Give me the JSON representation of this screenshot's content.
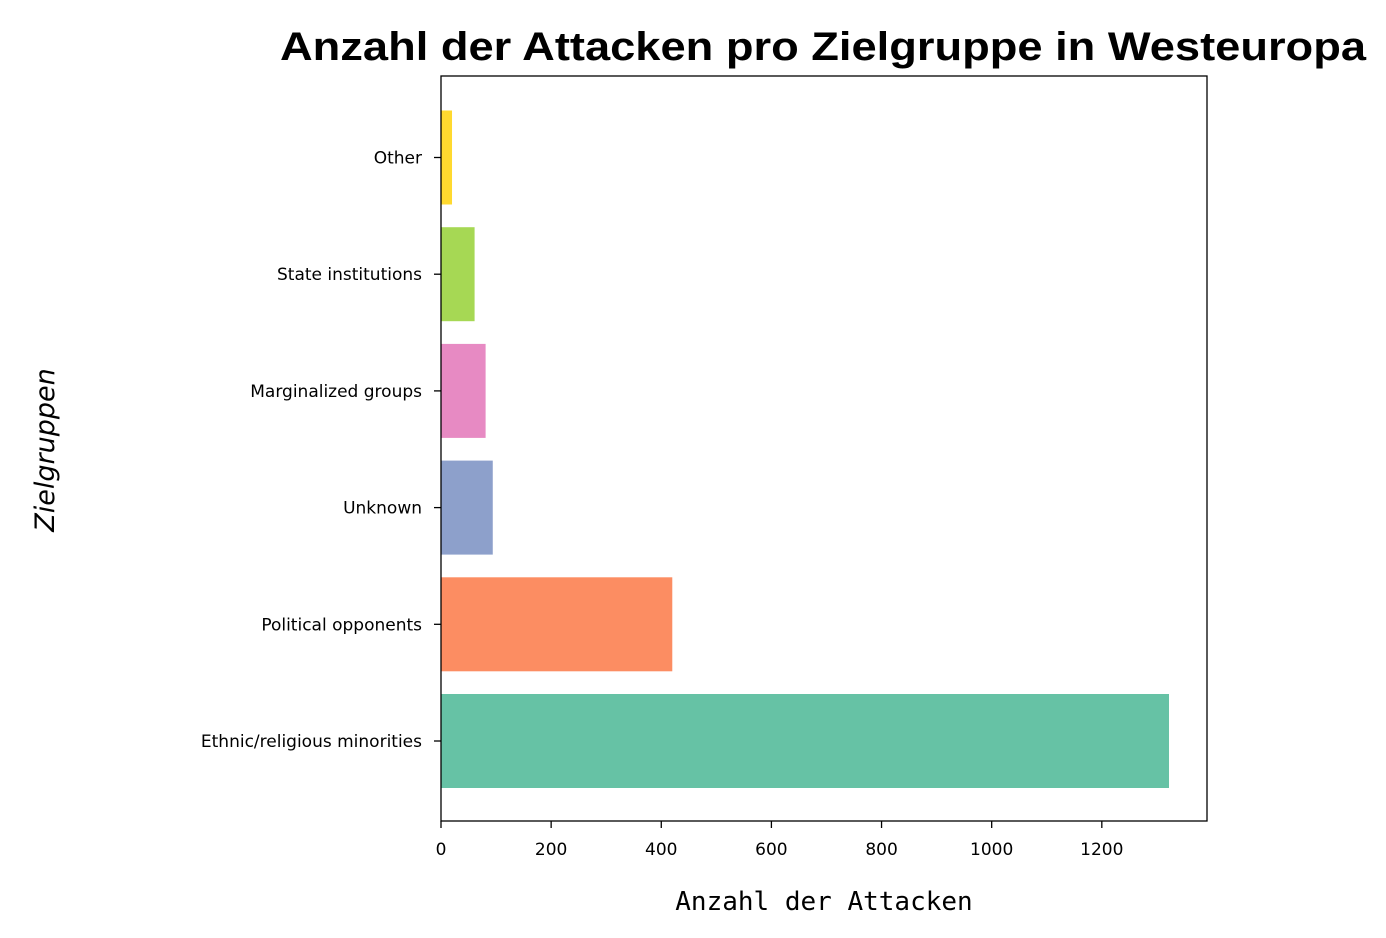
{
  "chart_data": {
    "type": "bar",
    "orientation": "horizontal",
    "title": "Anzahl der Attacken pro Zielgruppe in Westeuropa",
    "xlabel": "Anzahl der Attacken",
    "ylabel": "Zielgruppen",
    "categories": [
      "Ethnic/religious minorities",
      "Political opponents",
      "Unknown",
      "Marginalized groups",
      "State institutions",
      "Other"
    ],
    "values": [
      1322,
      420,
      94,
      81,
      61,
      20
    ],
    "colors": [
      "#66c2a5",
      "#fc8d62",
      "#8da0cb",
      "#e78ac3",
      "#a6d854",
      "#ffd92f"
    ],
    "xlim": [
      0,
      1391
    ],
    "xticks": [
      0,
      200,
      400,
      600,
      800,
      1000,
      1200
    ],
    "grid": false,
    "legend": "none"
  }
}
